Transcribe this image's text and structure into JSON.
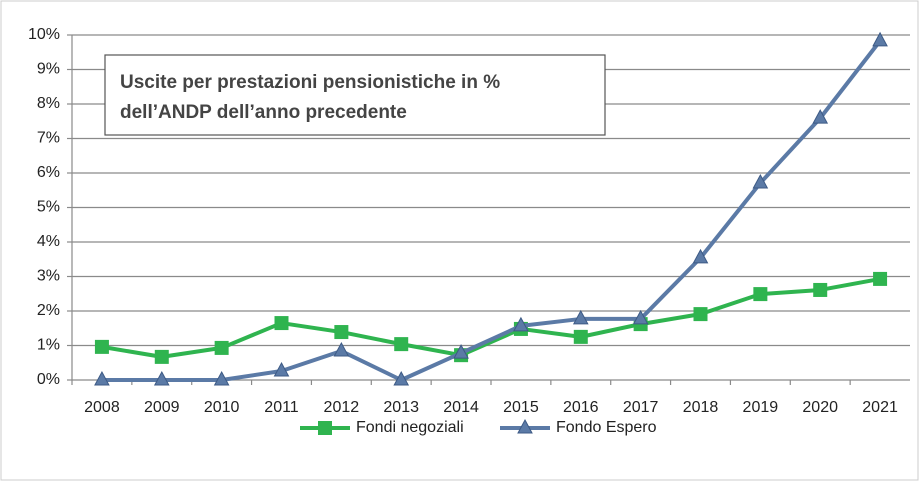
{
  "chart_data": {
    "type": "line",
    "title": [
      "Uscite per prestazioni pensionistiche in %",
      "dell’ANDP dell’anno precedente"
    ],
    "categories": [
      "2008",
      "2009",
      "2010",
      "2011",
      "2012",
      "2013",
      "2014",
      "2015",
      "2016",
      "2017",
      "2018",
      "2019",
      "2020",
      "2021"
    ],
    "series": [
      {
        "name": "Fondi negoziali",
        "color": "#2fb44f",
        "marker": "square",
        "values": [
          0.96,
          0.67,
          0.93,
          1.65,
          1.39,
          1.04,
          0.72,
          1.48,
          1.25,
          1.62,
          1.91,
          2.49,
          2.61,
          2.93
        ]
      },
      {
        "name": "Fondo Espero",
        "color": "#5b7aa6",
        "marker": "triangle",
        "values": [
          0,
          0,
          0,
          0.26,
          0.84,
          0,
          0.78,
          1.57,
          1.77,
          1.77,
          3.54,
          5.71,
          7.59,
          9.83
        ]
      }
    ],
    "ylim": [
      0,
      10
    ],
    "yticks": [
      {
        "value": 0,
        "label": "0%"
      },
      {
        "value": 1,
        "label": "1%"
      },
      {
        "value": 2,
        "label": "2%"
      },
      {
        "value": 3,
        "label": "3%"
      },
      {
        "value": 4,
        "label": "4%"
      },
      {
        "value": 5,
        "label": "5%"
      },
      {
        "value": 6,
        "label": "6%"
      },
      {
        "value": 7,
        "label": "7%"
      },
      {
        "value": 8,
        "label": "8%"
      },
      {
        "value": 9,
        "label": "9%"
      },
      {
        "value": 10,
        "label": "10%"
      }
    ],
    "grid": true,
    "legend": "bottom"
  }
}
